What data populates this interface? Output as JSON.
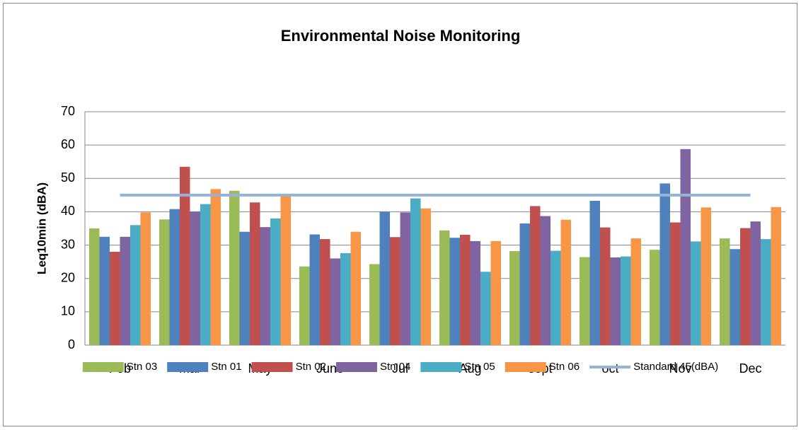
{
  "chart_data": {
    "type": "bar",
    "title": "Environmental Noise Monitoring",
    "y_label": "Leq10min (dBA)",
    "categories": [
      "Feb",
      "Mar",
      "May",
      "June",
      "Jul",
      "Aug",
      "sept",
      "oct",
      "Nov",
      "Dec"
    ],
    "series": [
      {
        "name": "Stn 03",
        "color": "#9bbb59",
        "values": [
          35,
          37.7,
          46.3,
          23.6,
          24.3,
          34.4,
          28.2,
          26.4,
          28.6,
          32
        ]
      },
      {
        "name": "Stn 01",
        "color": "#4f81bd",
        "values": [
          32.5,
          40.8,
          34,
          33.2,
          40,
          32.2,
          36.5,
          43.3,
          48.5,
          28.8
        ]
      },
      {
        "name": "Stn 02",
        "color": "#c0504d",
        "values": [
          28,
          53.5,
          42.8,
          31.8,
          32.4,
          33.1,
          41.7,
          35.3,
          36.8,
          35.1
        ]
      },
      {
        "name": "Stn 04",
        "color": "#8064a2",
        "values": [
          32.5,
          40,
          35.4,
          26,
          39.8,
          31.2,
          38.7,
          26.3,
          58.8,
          37.1
        ]
      },
      {
        "name": "Stn 05",
        "color": "#4bacc6",
        "values": [
          36,
          42.3,
          38,
          27.6,
          44,
          22,
          28.3,
          26.6,
          31.1,
          31.8
        ]
      },
      {
        "name": "Stn 06",
        "color": "#f79646",
        "values": [
          39.8,
          46.8,
          44.8,
          34,
          41,
          31.2,
          37.6,
          32,
          41.3,
          41.4
        ]
      },
      {
        "name": "Standard 45(dBA)",
        "color": "#95b3d7",
        "type": "line",
        "values": [
          45,
          45,
          45,
          45,
          45,
          45,
          45,
          45,
          45,
          45
        ]
      }
    ],
    "ylim": [
      0,
      70
    ],
    "yticks": [
      0,
      10,
      20,
      30,
      40,
      50,
      60,
      70
    ],
    "grid": true,
    "legend": "bottom"
  }
}
